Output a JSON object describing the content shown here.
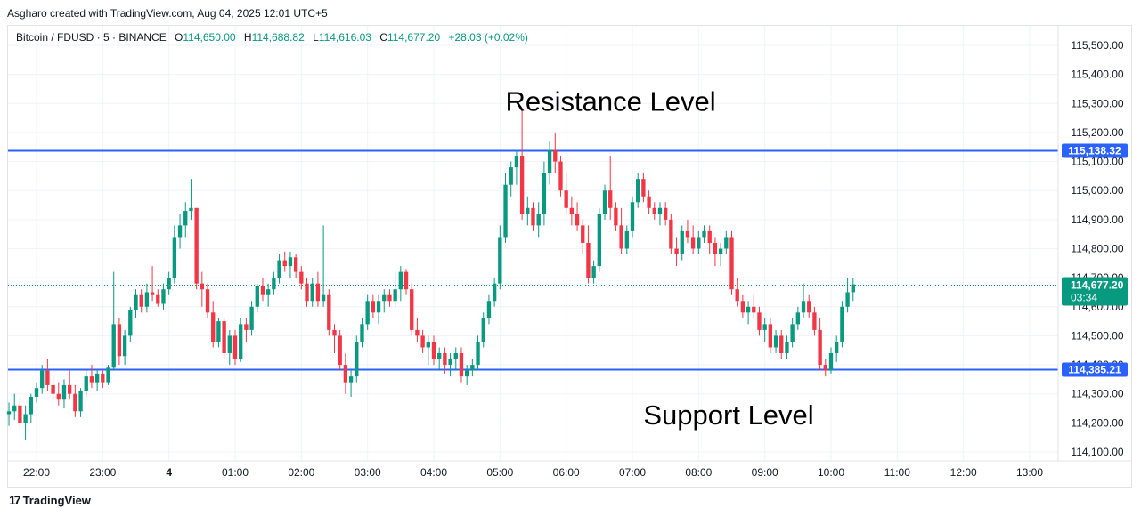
{
  "attribution": "Asgharo created with TradingView.com, Aug 04, 2025 12:01 UTC+5",
  "legend": {
    "symbol": "Bitcoin / FDUSD · 5 · BINANCE",
    "open_key": "O",
    "open": "114,650.00",
    "high_key": "H",
    "high": "114,688.82",
    "low_key": "L",
    "low": "114,616.03",
    "close_key": "C",
    "close": "114,677.20",
    "change": "+28.03 (+0.02%)"
  },
  "branding": {
    "logo_mark": "17",
    "name": "TradingView"
  },
  "colors": {
    "up": "#089981",
    "down": "#f23645",
    "level_line": "#2962ff",
    "grid": "#f0f3fa",
    "last_price_line": "#089981"
  },
  "chart_data": {
    "type": "candlestick",
    "ylim": [
      114050,
      115600
    ],
    "y_ticks": [
      {
        "value": 114100,
        "label": "114,100.00"
      },
      {
        "value": 114200,
        "label": "114,200.00"
      },
      {
        "value": 114300,
        "label": "114,300.00"
      },
      {
        "value": 114400,
        "label": "114,400.00"
      },
      {
        "value": 114500,
        "label": "114,500.00"
      },
      {
        "value": 114600,
        "label": "114,600.00"
      },
      {
        "value": 114700,
        "label": "114,700.00"
      },
      {
        "value": 114800,
        "label": "114,800.00"
      },
      {
        "value": 114900,
        "label": "114,900.00"
      },
      {
        "value": 115000,
        "label": "115,000.00"
      },
      {
        "value": 115100,
        "label": "115,100.00"
      },
      {
        "value": 115200,
        "label": "115,200.00"
      },
      {
        "value": 115300,
        "label": "115,300.00"
      },
      {
        "value": 115400,
        "label": "115,400.00"
      },
      {
        "value": 115500,
        "label": "115,500.00"
      }
    ],
    "x_ticks": [
      {
        "index": 0,
        "label": "22:00"
      },
      {
        "index": 12,
        "label": "23:00"
      },
      {
        "index": 24,
        "label": "4",
        "bold": true
      },
      {
        "index": 36,
        "label": "01:00"
      },
      {
        "index": 48,
        "label": "02:00"
      },
      {
        "index": 60,
        "label": "03:00"
      },
      {
        "index": 72,
        "label": "04:00"
      },
      {
        "index": 84,
        "label": "05:00"
      },
      {
        "index": 96,
        "label": "06:00"
      },
      {
        "index": 108,
        "label": "07:00"
      },
      {
        "index": 120,
        "label": "08:00"
      },
      {
        "index": 132,
        "label": "09:00"
      },
      {
        "index": 144,
        "label": "10:00"
      },
      {
        "index": 156,
        "label": "11:00"
      },
      {
        "index": 168,
        "label": "12:00"
      },
      {
        "index": 180,
        "label": "13:00"
      }
    ],
    "first_candle_index": -5,
    "levels": [
      {
        "name": "Resistance Level",
        "value": 115138.32,
        "label": "115,138.32"
      },
      {
        "name": "Support Level",
        "value": 114385.21,
        "label": "114,385.21"
      }
    ],
    "last_price": {
      "value": 114677.2,
      "label": "114,677.20",
      "countdown": "03:34"
    },
    "candles": [
      [
        114230,
        114270,
        114190,
        114240
      ],
      [
        114240,
        114300,
        114210,
        114260
      ],
      [
        114260,
        114290,
        114180,
        114200
      ],
      [
        114200,
        114260,
        114140,
        114230
      ],
      [
        114230,
        114300,
        114200,
        114290
      ],
      [
        114290,
        114340,
        114270,
        114320
      ],
      [
        114320,
        114400,
        114300,
        114380
      ],
      [
        114380,
        114420,
        114310,
        114330
      ],
      [
        114330,
        114360,
        114280,
        114300
      ],
      [
        114300,
        114340,
        114260,
        114280
      ],
      [
        114280,
        114350,
        114250,
        114330
      ],
      [
        114330,
        114380,
        114280,
        114300
      ],
      [
        114300,
        114330,
        114220,
        114240
      ],
      [
        114240,
        114320,
        114220,
        114310
      ],
      [
        114310,
        114380,
        114290,
        114360
      ],
      [
        114360,
        114400,
        114320,
        114340
      ],
      [
        114340,
        114380,
        114310,
        114370
      ],
      [
        114370,
        114380,
        114320,
        114340
      ],
      [
        114340,
        114400,
        114330,
        114390
      ],
      [
        114390,
        114720,
        114380,
        114540
      ],
      [
        114540,
        114560,
        114400,
        114430
      ],
      [
        114430,
        114520,
        114400,
        114500
      ],
      [
        114500,
        114600,
        114480,
        114590
      ],
      [
        114590,
        114660,
        114560,
        114640
      ],
      [
        114640,
        114660,
        114580,
        114600
      ],
      [
        114600,
        114680,
        114580,
        114650
      ],
      [
        114650,
        114740,
        114620,
        114640
      ],
      [
        114640,
        114660,
        114600,
        114610
      ],
      [
        114610,
        114680,
        114590,
        114660
      ],
      [
        114660,
        114720,
        114640,
        114700
      ],
      [
        114700,
        114880,
        114680,
        114840
      ],
      [
        114840,
        114920,
        114800,
        114880
      ],
      [
        114880,
        114960,
        114840,
        114930
      ],
      [
        114930,
        115040,
        114900,
        114940
      ],
      [
        114940,
        114940,
        114660,
        114680
      ],
      [
        114680,
        114720,
        114600,
        114660
      ],
      [
        114660,
        114680,
        114560,
        114580
      ],
      [
        114580,
        114620,
        114460,
        114480
      ],
      [
        114480,
        114560,
        114460,
        114550
      ],
      [
        114550,
        114560,
        114420,
        114440
      ],
      [
        114440,
        114520,
        114400,
        114500
      ],
      [
        114500,
        114520,
        114400,
        114420
      ],
      [
        114420,
        114560,
        114410,
        114540
      ],
      [
        114540,
        114560,
        114480,
        114520
      ],
      [
        114520,
        114620,
        114500,
        114600
      ],
      [
        114600,
        114680,
        114580,
        114670
      ],
      [
        114670,
        114700,
        114620,
        114640
      ],
      [
        114640,
        114680,
        114600,
        114660
      ],
      [
        114660,
        114720,
        114640,
        114700
      ],
      [
        114700,
        114780,
        114680,
        114760
      ],
      [
        114760,
        114790,
        114720,
        114740
      ],
      [
        114740,
        114790,
        114700,
        114770
      ],
      [
        114770,
        114780,
        114700,
        114720
      ],
      [
        114720,
        114740,
        114660,
        114680
      ],
      [
        114680,
        114700,
        114600,
        114620
      ],
      [
        114620,
        114700,
        114600,
        114680
      ],
      [
        114680,
        114720,
        114600,
        114620
      ],
      [
        114620,
        114880,
        114600,
        114640
      ],
      [
        114640,
        114660,
        114500,
        114520
      ],
      [
        114520,
        114540,
        114440,
        114500
      ],
      [
        114500,
        114520,
        114380,
        114400
      ],
      [
        114400,
        114440,
        114300,
        114340
      ],
      [
        114340,
        114380,
        114290,
        114360
      ],
      [
        114360,
        114500,
        114340,
        114480
      ],
      [
        114480,
        114560,
        114460,
        114540
      ],
      [
        114540,
        114640,
        114520,
        114620
      ],
      [
        114620,
        114640,
        114560,
        114580
      ],
      [
        114580,
        114640,
        114540,
        114620
      ],
      [
        114620,
        114660,
        114580,
        114640
      ],
      [
        114640,
        114660,
        114600,
        114620
      ],
      [
        114620,
        114720,
        114600,
        114660
      ],
      [
        114660,
        114740,
        114620,
        114720
      ],
      [
        114720,
        114730,
        114640,
        114660
      ],
      [
        114660,
        114680,
        114500,
        114520
      ],
      [
        114520,
        114560,
        114480,
        114500
      ],
      [
        114500,
        114520,
        114440,
        114460
      ],
      [
        114460,
        114500,
        114400,
        114480
      ],
      [
        114480,
        114500,
        114400,
        114420
      ],
      [
        114420,
        114460,
        114380,
        114440
      ],
      [
        114440,
        114460,
        114370,
        114400
      ],
      [
        114400,
        114440,
        114360,
        114420
      ],
      [
        114420,
        114460,
        114380,
        114440
      ],
      [
        114440,
        114460,
        114340,
        114360
      ],
      [
        114360,
        114400,
        114330,
        114380
      ],
      [
        114380,
        114420,
        114360,
        114400
      ],
      [
        114400,
        114500,
        114380,
        114480
      ],
      [
        114480,
        114580,
        114460,
        114560
      ],
      [
        114560,
        114640,
        114540,
        114620
      ],
      [
        114620,
        114700,
        114600,
        114680
      ],
      [
        114680,
        114880,
        114660,
        114840
      ],
      [
        114840,
        115060,
        114820,
        115020
      ],
      [
        115020,
        115100,
        114980,
        115080
      ],
      [
        115080,
        115140,
        115020,
        115120
      ],
      [
        115120,
        115280,
        114900,
        114920
      ],
      [
        114920,
        114980,
        114880,
        114940
      ],
      [
        114940,
        114960,
        114860,
        114880
      ],
      [
        114880,
        114960,
        114840,
        114920
      ],
      [
        114920,
        115100,
        114880,
        115060
      ],
      [
        115060,
        115170,
        115020,
        115140
      ],
      [
        115140,
        115200,
        115060,
        115100
      ],
      [
        115100,
        115120,
        114980,
        115000
      ],
      [
        115000,
        115060,
        114920,
        114940
      ],
      [
        114940,
        114980,
        114880,
        114920
      ],
      [
        114920,
        114960,
        114860,
        114880
      ],
      [
        114880,
        114900,
        114780,
        114820
      ],
      [
        114820,
        114880,
        114680,
        114700
      ],
      [
        114700,
        114760,
        114680,
        114740
      ],
      [
        114740,
        114940,
        114720,
        114920
      ],
      [
        114920,
        115020,
        114900,
        115000
      ],
      [
        115000,
        115120,
        114900,
        114940
      ],
      [
        114940,
        114960,
        114860,
        114880
      ],
      [
        114880,
        114940,
        114780,
        114800
      ],
      [
        114800,
        114880,
        114780,
        114860
      ],
      [
        114860,
        114980,
        114840,
        114960
      ],
      [
        114960,
        115060,
        114940,
        115040
      ],
      [
        115040,
        115060,
        114960,
        114980
      ],
      [
        114980,
        115000,
        114920,
        114940
      ],
      [
        114940,
        114960,
        114900,
        114920
      ],
      [
        114920,
        114960,
        114880,
        114940
      ],
      [
        114940,
        114960,
        114880,
        114900
      ],
      [
        114900,
        114920,
        114780,
        114800
      ],
      [
        114800,
        114840,
        114740,
        114780
      ],
      [
        114780,
        114880,
        114760,
        114860
      ],
      [
        114860,
        114900,
        114820,
        114840
      ],
      [
        114840,
        114880,
        114780,
        114800
      ],
      [
        114800,
        114860,
        114780,
        114840
      ],
      [
        114840,
        114880,
        114820,
        114860
      ],
      [
        114860,
        114880,
        114780,
        114820
      ],
      [
        114820,
        114840,
        114740,
        114780
      ],
      [
        114780,
        114820,
        114740,
        114800
      ],
      [
        114800,
        114860,
        114780,
        114840
      ],
      [
        114840,
        114860,
        114640,
        114660
      ],
      [
        114660,
        114700,
        114600,
        114620
      ],
      [
        114620,
        114640,
        114560,
        114580
      ],
      [
        114580,
        114620,
        114540,
        114600
      ],
      [
        114600,
        114640,
        114560,
        114580
      ],
      [
        114580,
        114600,
        114500,
        114520
      ],
      [
        114520,
        114560,
        114480,
        114540
      ],
      [
        114540,
        114560,
        114440,
        114460
      ],
      [
        114460,
        114520,
        114440,
        114500
      ],
      [
        114500,
        114520,
        114420,
        114440
      ],
      [
        114440,
        114500,
        114420,
        114480
      ],
      [
        114480,
        114560,
        114460,
        114540
      ],
      [
        114540,
        114600,
        114520,
        114580
      ],
      [
        114580,
        114680,
        114560,
        114620
      ],
      [
        114620,
        114640,
        114560,
        114580
      ],
      [
        114580,
        114600,
        114500,
        114520
      ],
      [
        114520,
        114560,
        114380,
        114400
      ],
      [
        114400,
        114420,
        114360,
        114380
      ],
      [
        114380,
        114460,
        114370,
        114440
      ],
      [
        114440,
        114500,
        114410,
        114480
      ],
      [
        114480,
        114620,
        114460,
        114600
      ],
      [
        114600,
        114700,
        114580,
        114650
      ],
      [
        114650,
        114700,
        114620,
        114677.2
      ]
    ]
  },
  "annotations": [
    {
      "text": "Resistance Level",
      "anchor_index": 85,
      "value": 115300
    },
    {
      "text": "Support Level",
      "anchor_index": 110,
      "value": 114220
    }
  ]
}
